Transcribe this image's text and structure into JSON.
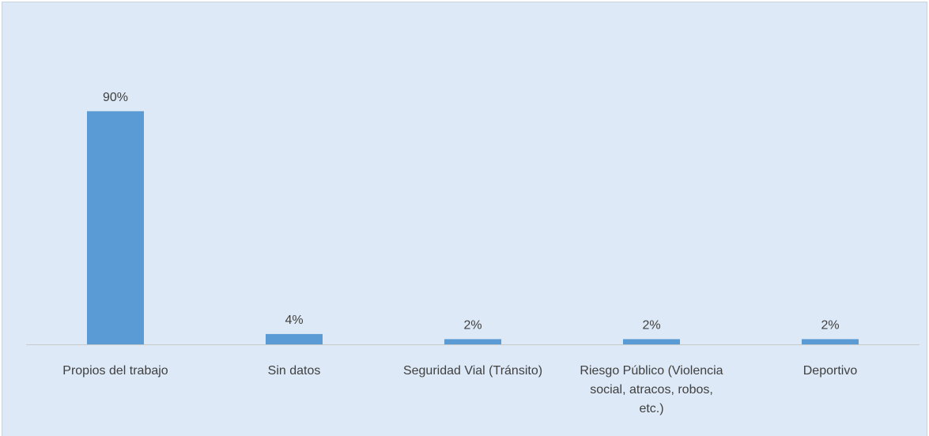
{
  "chart_data": {
    "type": "bar",
    "categories": [
      [
        "Propios del trabajo"
      ],
      [
        "Sin datos"
      ],
      [
        "Seguridad Vial (Tránsito)"
      ],
      [
        "Riesgo Público (Violencia",
        "social, atracos, robos,",
        "etc.)"
      ],
      [
        "Deportivo"
      ]
    ],
    "values": [
      90,
      4,
      2,
      2,
      2
    ],
    "data_labels": [
      "90%",
      "4%",
      "2%",
      "2%",
      "2%"
    ],
    "title": "",
    "xlabel": "",
    "ylabel": "",
    "ylim": [
      0,
      100
    ],
    "grid": false,
    "legend": "none",
    "bar_color": "#5b9bd5",
    "background_color": "#dde9f6"
  }
}
